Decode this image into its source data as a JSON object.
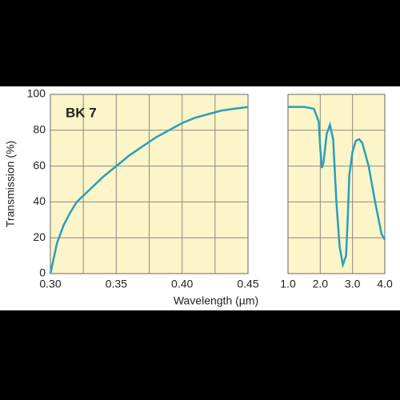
{
  "chart_data": [
    {
      "type": "line",
      "annotation": "BK 7",
      "ylabel": "Transmission (%)",
      "xlabel": "Wavelength (µm)",
      "x": [
        0.3,
        0.305,
        0.31,
        0.315,
        0.32,
        0.33,
        0.34,
        0.35,
        0.36,
        0.37,
        0.38,
        0.39,
        0.4,
        0.41,
        0.42,
        0.43,
        0.44,
        0.45
      ],
      "series": [
        {
          "color": "#2a9fb8",
          "values": [
            0,
            17,
            27,
            34,
            40,
            47,
            54,
            60,
            66,
            71,
            76,
            80,
            84,
            87,
            89,
            91,
            92,
            93
          ]
        }
      ],
      "xlim": [
        0.3,
        0.45
      ],
      "xticks": [
        {
          "value": 0.3,
          "label": "0.30"
        },
        0.35,
        {
          "value": 0.4,
          "label": "0.40"
        },
        0.45
      ],
      "xminorticks": [
        0.325,
        0.375,
        0.425
      ],
      "ylim": [
        0,
        100
      ],
      "yticks": [
        0,
        20,
        40,
        60,
        80,
        100
      ],
      "grid": true
    },
    {
      "type": "line",
      "x": [
        1.0,
        1.5,
        1.8,
        1.95,
        2.0,
        2.05,
        2.1,
        2.2,
        2.3,
        2.4,
        2.5,
        2.6,
        2.7,
        2.8,
        2.85,
        2.9,
        3.0,
        3.1,
        3.2,
        3.3,
        3.5,
        3.7,
        3.9,
        4.0
      ],
      "series": [
        {
          "color": "#2a9fb8",
          "values": [
            93,
            93,
            92,
            85,
            70,
            59,
            62,
            78,
            83,
            75,
            40,
            15,
            5,
            10,
            30,
            55,
            68,
            74,
            75,
            73,
            60,
            40,
            22,
            19
          ]
        }
      ],
      "xlim": [
        1.0,
        4.0
      ],
      "xticks": [
        {
          "value": 1.0,
          "label": "1.0"
        },
        {
          "value": 2.0,
          "label": "2.0"
        },
        {
          "value": 3.0,
          "label": "3.0"
        },
        {
          "value": 4.0,
          "label": "4.0"
        }
      ],
      "ylim": [
        0,
        100
      ],
      "yticks": [
        0,
        20,
        40,
        60,
        80,
        100
      ],
      "grid": true
    }
  ]
}
